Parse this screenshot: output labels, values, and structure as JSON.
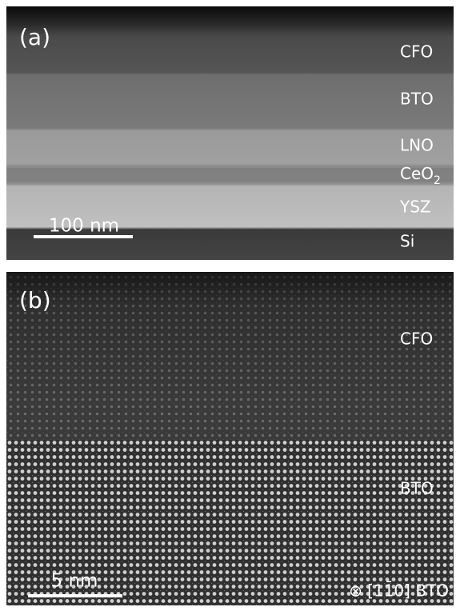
{
  "panel_a": {
    "tag": "(a)",
    "scale_bar": "100 nm",
    "layers": [
      {
        "text": "CFO"
      },
      {
        "text": "BTO"
      },
      {
        "text": "LNO"
      },
      {
        "text": "CeO",
        "subscript": "2"
      },
      {
        "text": "YSZ"
      },
      {
        "text": "Si"
      }
    ]
  },
  "panel_b": {
    "tag": "(b)",
    "scale_bar": "5 nm",
    "layers": [
      {
        "text": "CFO"
      },
      {
        "text": "BTO"
      }
    ],
    "zone_axis": "⊗ [11̄0] BTO"
  }
}
